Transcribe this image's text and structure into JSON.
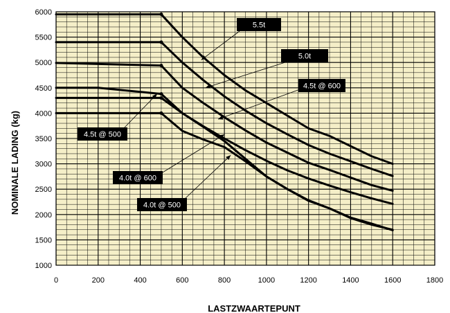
{
  "chart_data": {
    "type": "line",
    "title": "",
    "xlabel": "LASTZWAARTEPUNT",
    "ylabel": "NOMINALE LADING (kg)",
    "xlim": [
      0,
      1800
    ],
    "ylim": [
      1000,
      6000
    ],
    "x_ticks": [
      "0",
      "200",
      "400",
      "600",
      "800",
      "1000",
      "1200",
      "1400",
      "1600",
      "1800"
    ],
    "y_ticks": [
      "1000",
      "1500",
      "2000",
      "2500",
      "3000",
      "3500",
      "4000",
      "4500",
      "5000",
      "5500",
      "6000"
    ],
    "grid": true,
    "plot_background": "#f5efc8",
    "line_color": "#000000",
    "series": [
      {
        "name": "5.5t",
        "x": [
          0,
          500,
          600,
          700,
          800,
          900,
          1000,
          1100,
          1200,
          1300,
          1400,
          1500,
          1600
        ],
        "y": [
          5950,
          5950,
          5500,
          5100,
          4750,
          4450,
          4200,
          3950,
          3700,
          3550,
          3350,
          3150,
          3000
        ]
      },
      {
        "name": "5.0t",
        "x": [
          0,
          500,
          600,
          700,
          800,
          900,
          1000,
          1100,
          1200,
          1300,
          1400,
          1500,
          1600
        ],
        "y": [
          5400,
          5400,
          5000,
          4650,
          4330,
          4050,
          3800,
          3580,
          3370,
          3200,
          3050,
          2900,
          2760
        ]
      },
      {
        "name": "4.5t @ 600",
        "x": [
          0,
          500,
          600,
          700,
          800,
          900,
          1000,
          1100,
          1200,
          1300,
          1400,
          1500,
          1600
        ],
        "y": [
          4990,
          4940,
          4500,
          4200,
          3920,
          3660,
          3420,
          3220,
          3020,
          2880,
          2730,
          2580,
          2470
        ]
      },
      {
        "name": "4.5t @ 500",
        "x": [
          0,
          200,
          500,
          600,
          700,
          800,
          900,
          1000,
          1100,
          1200,
          1300,
          1400,
          1500,
          1600
        ],
        "y": [
          4500,
          4500,
          4380,
          4000,
          3740,
          3500,
          3270,
          3060,
          2870,
          2710,
          2570,
          2440,
          2320,
          2210
        ]
      },
      {
        "name": "4.0t @ 600",
        "x": [
          0,
          500,
          600,
          700,
          800,
          900,
          1000,
          1100,
          1200,
          1300,
          1400,
          1500,
          1600
        ],
        "y": [
          4300,
          4300,
          4000,
          3730,
          3450,
          3100,
          2750,
          2500,
          2270,
          2120,
          1930,
          1800,
          1700
        ]
      },
      {
        "name": "4.0t @ 500",
        "x": [
          0,
          500,
          600,
          700,
          800,
          900,
          1000,
          1100,
          1200,
          1300,
          1400,
          1500,
          1600
        ],
        "y": [
          4000,
          4000,
          3650,
          3480,
          3330,
          3050,
          2750,
          2500,
          2280,
          2120,
          1940,
          1820,
          1690
        ]
      }
    ],
    "annotations": [
      {
        "text": "5.5t",
        "target_x": 690,
        "target_y": 5050
      },
      {
        "text": "5.0t",
        "target_x": 710,
        "target_y": 4500
      },
      {
        "text": "4.5t @ 600",
        "target_x": 770,
        "target_y": 3880
      },
      {
        "text": "4.5t @ 500",
        "target_x": 480,
        "target_y": 4380
      },
      {
        "text": "4.0t @ 600",
        "target_x": 800,
        "target_y": 3580
      },
      {
        "text": "4.0t @ 500",
        "target_x": 830,
        "target_y": 3170
      }
    ]
  }
}
